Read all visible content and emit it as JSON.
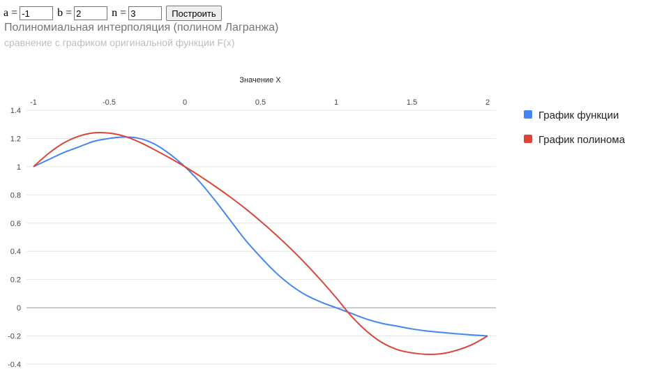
{
  "form": {
    "a_label": "a =",
    "a_value": "-1",
    "b_label": "b =",
    "b_value": "2",
    "n_label": "n =",
    "n_value": "3",
    "button_label": "Построить"
  },
  "chart_data": {
    "type": "line",
    "title": "Полиномиальная интерполяция (полином Лагранжа)",
    "subtitle": "сравнение с графиком оригинальной функции F(x)",
    "xlabel": "Значение X",
    "ylabel": "",
    "xlim": [
      -1,
      2
    ],
    "ylim": [
      -0.4,
      1.4
    ],
    "x_ticks": [
      "-1",
      "-0.5",
      "0",
      "0.5",
      "1",
      "1.5",
      "2"
    ],
    "y_ticks": [
      "1.4",
      "1.2",
      "1",
      "0.8",
      "0.6",
      "0.4",
      "0.2",
      "0",
      "-0.2",
      "-0.4"
    ],
    "x_axis_position": "top",
    "grid": true,
    "legend_position": "right",
    "series": [
      {
        "name": "График функции",
        "color": "#4285f4",
        "x": [
          -1,
          -0.9,
          -0.8,
          -0.7,
          -0.6,
          -0.5,
          -0.4,
          -0.3,
          -0.2,
          -0.1,
          0,
          0.1,
          0.2,
          0.3,
          0.4,
          0.5,
          0.6,
          0.7,
          0.8,
          0.9,
          1,
          1.1,
          1.2,
          1.3,
          1.4,
          1.5,
          1.6,
          1.7,
          1.8,
          1.9,
          2
        ],
        "values": [
          1.0,
          1.05,
          1.1,
          1.14,
          1.18,
          1.2,
          1.21,
          1.2,
          1.16,
          1.09,
          1.0,
          0.89,
          0.76,
          0.62,
          0.48,
          0.36,
          0.25,
          0.16,
          0.09,
          0.04,
          0.0,
          -0.04,
          -0.08,
          -0.11,
          -0.13,
          -0.15,
          -0.165,
          -0.175,
          -0.185,
          -0.193,
          -0.2
        ]
      },
      {
        "name": "График полинома",
        "color": "#db4437",
        "x": [
          -1,
          -0.9,
          -0.8,
          -0.7,
          -0.6,
          -0.5,
          -0.4,
          -0.3,
          -0.2,
          -0.1,
          0,
          0.1,
          0.2,
          0.3,
          0.4,
          0.5,
          0.6,
          0.7,
          0.8,
          0.9,
          1,
          1.1,
          1.2,
          1.3,
          1.4,
          1.5,
          1.6,
          1.7,
          1.8,
          1.9,
          2
        ],
        "values": [
          1.0,
          1.094,
          1.168,
          1.216,
          1.24,
          1.238,
          1.216,
          1.174,
          1.12,
          1.062,
          1.0,
          0.933,
          0.861,
          0.785,
          0.703,
          0.614,
          0.519,
          0.418,
          0.31,
          0.194,
          0.071,
          -0.059,
          -0.165,
          -0.245,
          -0.295,
          -0.32,
          -0.33,
          -0.325,
          -0.3,
          -0.26,
          -0.2
        ]
      }
    ]
  }
}
